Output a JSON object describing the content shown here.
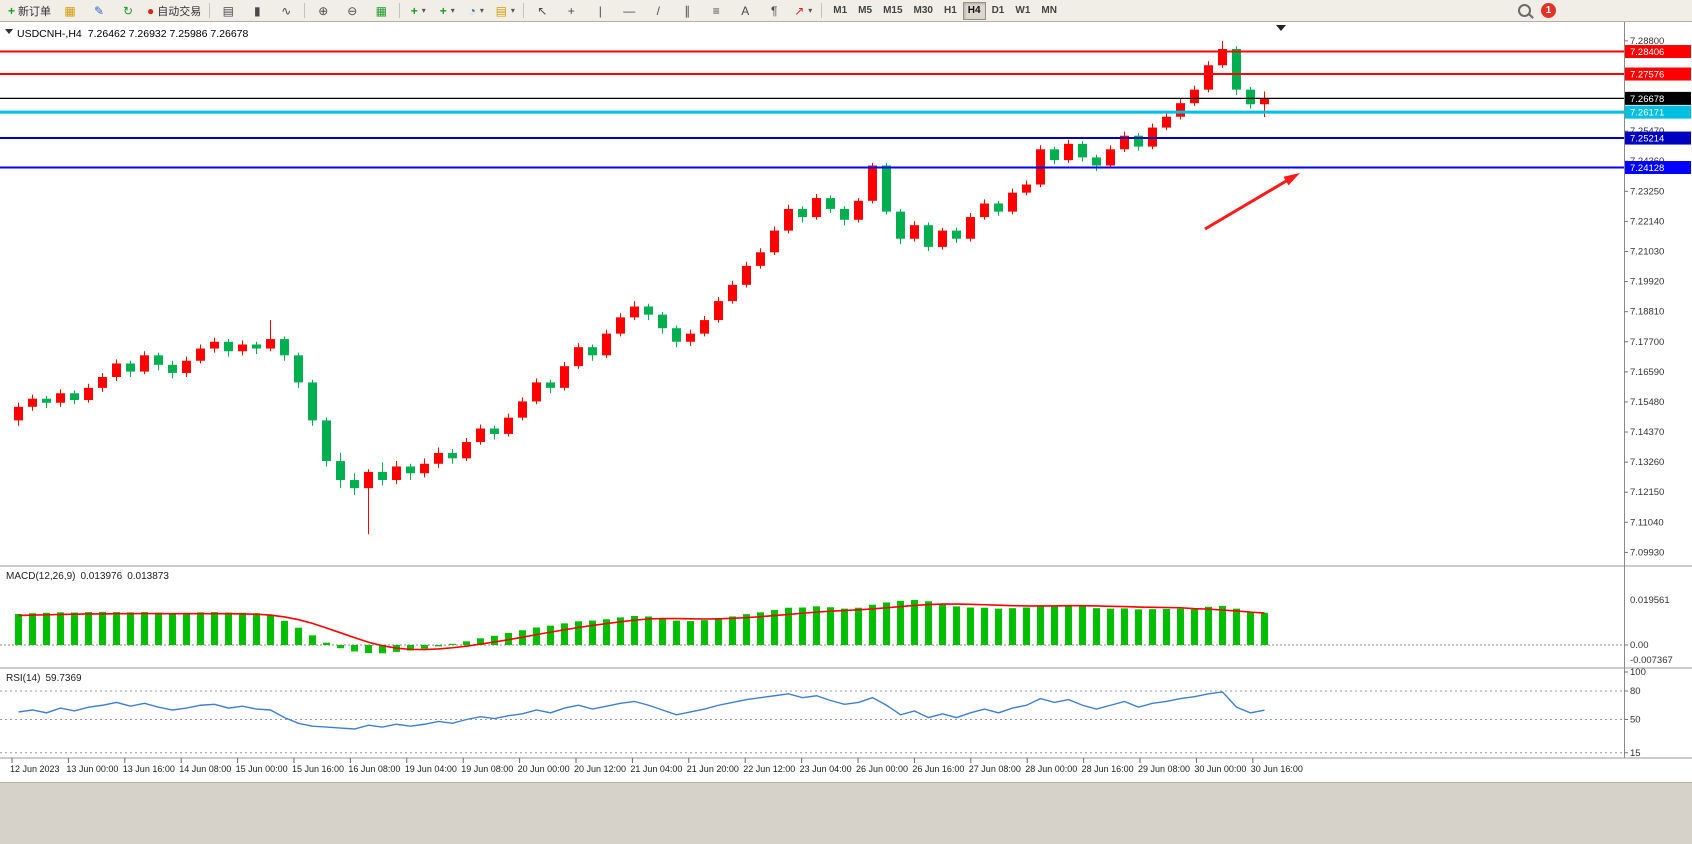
{
  "toolbar": {
    "new_order_label": "新订单",
    "autotrade_label": "自动交易",
    "timeframes": [
      "M1",
      "M5",
      "M15",
      "M30",
      "H1",
      "H4",
      "D1",
      "W1",
      "MN"
    ],
    "active_timeframe": "H4",
    "notification_count": "1"
  },
  "icons": {
    "new_order": "+",
    "charts": "▦",
    "profile": "✎",
    "refresh": "↻",
    "autotrade_dot": "●",
    "bar_chart": "▤",
    "candlestick": "▮",
    "line_chart": "∿",
    "zoom_in": "⊕",
    "zoom_out": "⊖",
    "tiles": "▦",
    "new_chart": "+",
    "indicators": "+",
    "periods": "◔",
    "templates": "▤",
    "cursor": "↖",
    "crosshair": "+",
    "vline": "|",
    "hline": "—",
    "trendline": "/",
    "channel": "∥",
    "fibonacci": "≡",
    "text_tool": "A",
    "label_tool": "¶",
    "arrows_tool": "↗",
    "caret": "▾"
  },
  "colors": {
    "up": "#ff0000",
    "down": "#00b050",
    "macd_hist": "#00bf00",
    "macd_signal": "#ff0000",
    "rsi_line": "#3f7fd2",
    "badge_black": "#000000",
    "badge_cyan": "#00bfe0",
    "badge_blue": "#0000ff",
    "badge_navy": "#0000c0",
    "badge_red": "#ff0000"
  },
  "chart_data": {
    "type": "candlestick",
    "symbol": "USDCNH-",
    "timeframe": "H4",
    "title_symbol": "USDCNH-,H4",
    "title_ohlc": "7.26462 7.26932 7.25986 7.26678",
    "current": {
      "open": 7.26462,
      "high": 7.26932,
      "low": 7.25986,
      "close": 7.26678
    },
    "price_axis": {
      "max": 7.292,
      "min": 7.0965,
      "ticks": [
        "7.28800",
        "7.27690",
        "7.26580",
        "7.25470",
        "7.24360",
        "7.23250",
        "7.22140",
        "7.21030",
        "7.19920",
        "7.18810",
        "7.17700",
        "7.16590",
        "7.15480",
        "7.14370",
        "7.13260",
        "7.12150",
        "7.11040",
        "7.09930"
      ]
    },
    "lines": [
      {
        "price": 7.28406,
        "label": "7.28406",
        "color": "#ff0000",
        "width": 2
      },
      {
        "price": 7.27576,
        "label": "7.27576",
        "color": "#ff0000",
        "width": 2
      },
      {
        "price": 7.26678,
        "label": "7.26678",
        "color": "#000000",
        "width": 1.2
      },
      {
        "price": 7.26171,
        "label": "7.26171",
        "color": "#00bfe0",
        "width": 3
      },
      {
        "price": 7.25214,
        "label": "7.25214",
        "color": "#0000c0",
        "width": 2
      },
      {
        "price": 7.24128,
        "label": "7.24128",
        "color": "#0000ff",
        "width": 2
      }
    ],
    "x_labels": [
      "12 Jun 2023",
      "13 Jun 00:00",
      "13 Jun 16:00",
      "14 Jun 08:00",
      "15 Jun 00:00",
      "15 Jun 16:00",
      "16 Jun 08:00",
      "19 Jun 04:00",
      "19 Jun 08:00",
      "20 Jun 00:00",
      "20 Jun 12:00",
      "21 Jun 04:00",
      "21 Jun 20:00",
      "22 Jun 12:00",
      "23 Jun 04:00",
      "26 Jun 00:00",
      "26 Jun 16:00",
      "27 Jun 08:00",
      "28 Jun 00:00",
      "28 Jun 16:00",
      "29 Jun 08:00",
      "30 Jun 00:00",
      "30 Jun 16:00"
    ],
    "candles": [
      [
        7.148,
        7.1545,
        7.146,
        7.153
      ],
      [
        7.153,
        7.1575,
        7.1515,
        7.156
      ],
      [
        7.156,
        7.157,
        7.1525,
        7.1545
      ],
      [
        7.1545,
        7.1595,
        7.153,
        7.158
      ],
      [
        7.158,
        7.159,
        7.154,
        7.1555
      ],
      [
        7.1555,
        7.1615,
        7.1545,
        7.16
      ],
      [
        7.16,
        7.1655,
        7.1585,
        7.164
      ],
      [
        7.164,
        7.1705,
        7.1625,
        7.169
      ],
      [
        7.169,
        7.17,
        7.164,
        7.166
      ],
      [
        7.166,
        7.1735,
        7.165,
        7.172
      ],
      [
        7.172,
        7.173,
        7.1665,
        7.1685
      ],
      [
        7.1685,
        7.17,
        7.1635,
        7.1655
      ],
      [
        7.1655,
        7.1715,
        7.164,
        7.17
      ],
      [
        7.17,
        7.176,
        7.169,
        7.1745
      ],
      [
        7.1745,
        7.1785,
        7.173,
        7.177
      ],
      [
        7.177,
        7.178,
        7.1715,
        7.1735
      ],
      [
        7.1735,
        7.1775,
        7.172,
        7.176
      ],
      [
        7.176,
        7.177,
        7.1725,
        7.1745
      ],
      [
        7.1745,
        7.185,
        7.1735,
        7.178
      ],
      [
        7.178,
        7.179,
        7.17,
        7.172
      ],
      [
        7.172,
        7.173,
        7.16,
        7.162
      ],
      [
        7.162,
        7.163,
        7.146,
        7.148
      ],
      [
        7.148,
        7.149,
        7.131,
        7.133
      ],
      [
        7.133,
        7.136,
        7.123,
        7.126
      ],
      [
        7.126,
        7.1285,
        7.1205,
        7.123
      ],
      [
        7.123,
        7.13,
        7.106,
        7.129
      ],
      [
        7.129,
        7.1325,
        7.124,
        7.126
      ],
      [
        7.126,
        7.133,
        7.1245,
        7.131
      ],
      [
        7.131,
        7.132,
        7.126,
        7.1285
      ],
      [
        7.1285,
        7.134,
        7.127,
        7.132
      ],
      [
        7.132,
        7.138,
        7.1305,
        7.136
      ],
      [
        7.136,
        7.1375,
        7.132,
        7.134
      ],
      [
        7.134,
        7.1415,
        7.133,
        7.14
      ],
      [
        7.14,
        7.1465,
        7.139,
        7.145
      ],
      [
        7.145,
        7.146,
        7.141,
        7.143
      ],
      [
        7.143,
        7.1505,
        7.142,
        7.149
      ],
      [
        7.149,
        7.1565,
        7.148,
        7.155
      ],
      [
        7.155,
        7.1635,
        7.154,
        7.162
      ],
      [
        7.162,
        7.163,
        7.158,
        7.16
      ],
      [
        7.16,
        7.1695,
        7.159,
        7.168
      ],
      [
        7.168,
        7.1765,
        7.167,
        7.175
      ],
      [
        7.175,
        7.176,
        7.17,
        7.172
      ],
      [
        7.172,
        7.1815,
        7.171,
        7.18
      ],
      [
        7.18,
        7.1875,
        7.179,
        7.186
      ],
      [
        7.186,
        7.192,
        7.185,
        7.19
      ],
      [
        7.19,
        7.191,
        7.185,
        7.187
      ],
      [
        7.187,
        7.188,
        7.18,
        7.182
      ],
      [
        7.182,
        7.183,
        7.175,
        7.177
      ],
      [
        7.177,
        7.1815,
        7.1755,
        7.18
      ],
      [
        7.18,
        7.1865,
        7.179,
        7.185
      ],
      [
        7.185,
        7.1935,
        7.184,
        7.192
      ],
      [
        7.192,
        7.1995,
        7.191,
        7.198
      ],
      [
        7.198,
        7.2065,
        7.197,
        7.205
      ],
      [
        7.205,
        7.2115,
        7.204,
        7.21
      ],
      [
        7.21,
        7.2195,
        7.209,
        7.218
      ],
      [
        7.218,
        7.2275,
        7.217,
        7.226
      ],
      [
        7.226,
        7.227,
        7.221,
        7.223
      ],
      [
        7.223,
        7.2315,
        7.222,
        7.23
      ],
      [
        7.23,
        7.231,
        7.2245,
        7.226
      ],
      [
        7.226,
        7.227,
        7.22,
        7.222
      ],
      [
        7.222,
        7.23,
        7.221,
        7.229
      ],
      [
        7.229,
        7.243,
        7.228,
        7.242
      ],
      [
        7.242,
        7.243,
        7.224,
        7.225
      ],
      [
        7.225,
        7.226,
        7.213,
        7.215
      ],
      [
        7.215,
        7.2215,
        7.214,
        7.22
      ],
      [
        7.22,
        7.221,
        7.2105,
        7.212
      ],
      [
        7.212,
        7.219,
        7.211,
        7.218
      ],
      [
        7.218,
        7.219,
        7.2135,
        7.215
      ],
      [
        7.215,
        7.2245,
        7.214,
        7.223
      ],
      [
        7.223,
        7.2295,
        7.222,
        7.228
      ],
      [
        7.228,
        7.229,
        7.2235,
        7.225
      ],
      [
        7.225,
        7.2335,
        7.224,
        7.232
      ],
      [
        7.232,
        7.2365,
        7.231,
        7.235
      ],
      [
        7.235,
        7.2495,
        7.234,
        7.248
      ],
      [
        7.248,
        7.249,
        7.2425,
        7.244
      ],
      [
        7.244,
        7.2515,
        7.243,
        7.25
      ],
      [
        7.25,
        7.251,
        7.2435,
        7.245
      ],
      [
        7.245,
        7.246,
        7.24,
        7.242
      ],
      [
        7.242,
        7.2495,
        7.241,
        7.248
      ],
      [
        7.248,
        7.2545,
        7.247,
        7.253
      ],
      [
        7.253,
        7.254,
        7.2475,
        7.249
      ],
      [
        7.249,
        7.2575,
        7.248,
        7.256
      ],
      [
        7.256,
        7.2615,
        7.255,
        7.26
      ],
      [
        7.26,
        7.2665,
        7.259,
        7.265
      ],
      [
        7.265,
        7.2715,
        7.264,
        7.27
      ],
      [
        7.27,
        7.2805,
        7.269,
        7.279
      ],
      [
        7.279,
        7.288,
        7.278,
        7.285
      ],
      [
        7.285,
        7.286,
        7.268,
        7.27
      ],
      [
        7.27,
        7.271,
        7.263,
        7.2646
      ],
      [
        7.26462,
        7.26932,
        7.25986,
        7.26678
      ]
    ],
    "macd": {
      "label": "MACD(12,26,9)",
      "value_main": "0.013976",
      "value_signal": "0.013873",
      "scale": [
        "0.019561",
        "0.00",
        "-0.007367"
      ],
      "max": 0.019561,
      "min": -0.007367,
      "hist": [
        0.0135,
        0.0138,
        0.014,
        0.0142,
        0.0141,
        0.0143,
        0.0144,
        0.0143,
        0.0142,
        0.0143,
        0.0141,
        0.0139,
        0.014,
        0.0142,
        0.0143,
        0.0141,
        0.014,
        0.0138,
        0.0128,
        0.0105,
        0.0075,
        0.0042,
        0.001,
        -0.0014,
        -0.0028,
        -0.0035,
        -0.0036,
        -0.003,
        -0.0024,
        -0.0016,
        -0.0006,
        0.0005,
        0.0016,
        0.0029,
        0.004,
        0.0052,
        0.0064,
        0.0076,
        0.0084,
        0.0094,
        0.0103,
        0.0106,
        0.0112,
        0.012,
        0.0126,
        0.0124,
        0.0116,
        0.0106,
        0.0104,
        0.0108,
        0.0115,
        0.0124,
        0.0134,
        0.0142,
        0.0152,
        0.0162,
        0.0163,
        0.0168,
        0.0164,
        0.0158,
        0.0162,
        0.0175,
        0.0185,
        0.0192,
        0.0196,
        0.019,
        0.0178,
        0.0168,
        0.0163,
        0.0162,
        0.0158,
        0.016,
        0.0163,
        0.0172,
        0.0172,
        0.0174,
        0.0168,
        0.016,
        0.0158,
        0.0159,
        0.0155,
        0.0156,
        0.0157,
        0.0158,
        0.016,
        0.0166,
        0.017,
        0.0158,
        0.0145,
        0.014
      ],
      "signal": [
        0.0128,
        0.013,
        0.0131,
        0.0133,
        0.0134,
        0.0135,
        0.0135,
        0.0136,
        0.0136,
        0.0137,
        0.0136,
        0.0136,
        0.0136,
        0.0136,
        0.0136,
        0.0136,
        0.0135,
        0.0134,
        0.013,
        0.0122,
        0.011,
        0.0094,
        0.0074,
        0.0053,
        0.0032,
        0.0012,
        -0.0003,
        -0.0014,
        -0.0019,
        -0.002,
        -0.0017,
        -0.0012,
        -0.0005,
        0.0004,
        0.0013,
        0.0023,
        0.0034,
        0.0045,
        0.0056,
        0.0066,
        0.0076,
        0.0085,
        0.0093,
        0.0101,
        0.0108,
        0.0113,
        0.0115,
        0.0115,
        0.0114,
        0.0113,
        0.0114,
        0.0116,
        0.0119,
        0.0123,
        0.0128,
        0.0133,
        0.0138,
        0.0143,
        0.0147,
        0.015,
        0.0153,
        0.0157,
        0.0162,
        0.0167,
        0.0172,
        0.0176,
        0.0178,
        0.0178,
        0.0177,
        0.0175,
        0.0173,
        0.0171,
        0.017,
        0.017,
        0.017,
        0.0171,
        0.0171,
        0.017,
        0.0168,
        0.0167,
        0.0165,
        0.0164,
        0.0163,
        0.0162,
        0.0158,
        0.0156,
        0.0152,
        0.0148,
        0.0143,
        0.0139
      ]
    },
    "rsi": {
      "label": "RSI(14)",
      "value": "59.7369",
      "levels": [
        {
          "v": 100,
          "label": "100",
          "dashed": false
        },
        {
          "v": 80,
          "label": "80",
          "dashed": true
        },
        {
          "v": 50,
          "label": "50",
          "dashed": true
        },
        {
          "v": 15,
          "label": "15",
          "dashed": true
        }
      ],
      "values": [
        58,
        60,
        57,
        62,
        59,
        63,
        65,
        68,
        64,
        67,
        63,
        60,
        62,
        65,
        66,
        62,
        64,
        61,
        60,
        52,
        46,
        43,
        42,
        41,
        40,
        44,
        42,
        45,
        43,
        45,
        48,
        46,
        50,
        53,
        51,
        54,
        56,
        60,
        57,
        62,
        65,
        61,
        64,
        67,
        69,
        65,
        60,
        55,
        58,
        61,
        65,
        68,
        71,
        73,
        75,
        77,
        73,
        75,
        70,
        66,
        68,
        73,
        65,
        55,
        59,
        52,
        56,
        52,
        57,
        61,
        57,
        62,
        65,
        72,
        68,
        71,
        65,
        61,
        65,
        69,
        63,
        67,
        69,
        72,
        74,
        77,
        79,
        63,
        57,
        59.74
      ]
    }
  }
}
